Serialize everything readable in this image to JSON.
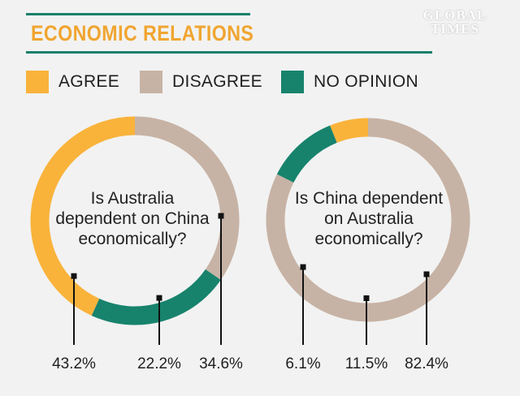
{
  "header": {
    "title": "ECONOMIC RELATIONS",
    "logo_line1": "GLOBAL",
    "logo_line2": "TIMES"
  },
  "legend": [
    {
      "label": "AGREE",
      "color": "#f9b33b"
    },
    {
      "label": "DISAGREE",
      "color": "#c7b3a5"
    },
    {
      "label": "NO OPINION",
      "color": "#17836d"
    }
  ],
  "chart_data": [
    {
      "type": "pie",
      "title": "Is Australia dependent on China economically?",
      "title_lines": [
        "Is Australia",
        "dependent on China",
        "economically?"
      ],
      "categories": [
        "AGREE",
        "NO OPINION",
        "DISAGREE"
      ],
      "values": [
        43.2,
        22.2,
        34.6
      ],
      "labels": [
        "43.2%",
        "22.2%",
        "34.6%"
      ],
      "colors": [
        "#f9b33b",
        "#17836d",
        "#c7b3a5"
      ],
      "donut": true
    },
    {
      "type": "pie",
      "title": "Is China dependent on Australia economically?",
      "title_lines": [
        "Is China dependent",
        "on Australia",
        "economically?"
      ],
      "categories": [
        "AGREE",
        "NO OPINION",
        "DISAGREE"
      ],
      "values": [
        6.1,
        11.5,
        82.4
      ],
      "labels": [
        "6.1%",
        "11.5%",
        "82.4%"
      ],
      "colors": [
        "#f9b33b",
        "#17836d",
        "#c7b3a5"
      ],
      "donut": true
    }
  ]
}
